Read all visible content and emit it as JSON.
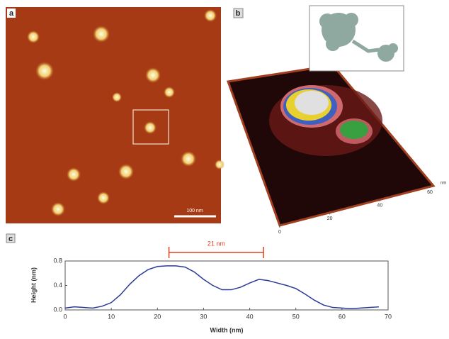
{
  "panels": {
    "a": {
      "label": "a",
      "scale_bar": "100 nm"
    },
    "b": {
      "label": "b",
      "ticks": [
        "0",
        "20",
        "40",
        "60"
      ],
      "unit": "nm"
    },
    "c": {
      "label": "c"
    }
  },
  "chart_data": {
    "type": "line",
    "x_label": "Width (nm)",
    "y_label": "Height (nm)",
    "annotation": "21 nm",
    "annotation_x": [
      22.5,
      43
    ],
    "x": [
      0,
      2,
      4,
      6,
      8,
      10,
      12,
      14,
      16,
      18,
      20,
      22,
      24,
      26,
      28,
      30,
      32,
      34,
      36,
      38,
      40,
      42,
      44,
      46,
      48,
      50,
      52,
      54,
      56,
      58,
      60,
      62,
      64,
      66,
      68
    ],
    "series": [
      {
        "color": "#2b3a9a",
        "values": [
          0.03,
          0.05,
          0.04,
          0.03,
          0.06,
          0.12,
          0.25,
          0.42,
          0.56,
          0.66,
          0.71,
          0.72,
          0.72,
          0.7,
          0.62,
          0.5,
          0.4,
          0.33,
          0.33,
          0.37,
          0.44,
          0.5,
          0.48,
          0.44,
          0.4,
          0.35,
          0.26,
          0.16,
          0.08,
          0.04,
          0.03,
          0.02,
          0.03,
          0.04,
          0.05
        ]
      }
    ],
    "xlim": [
      0,
      70
    ],
    "ylim": [
      0,
      0.8
    ],
    "xticks": [
      0,
      10,
      20,
      30,
      40,
      50,
      60,
      70
    ],
    "yticks": [
      {
        "value": 0,
        "label": "0.0"
      },
      0.4,
      0.8
    ]
  }
}
